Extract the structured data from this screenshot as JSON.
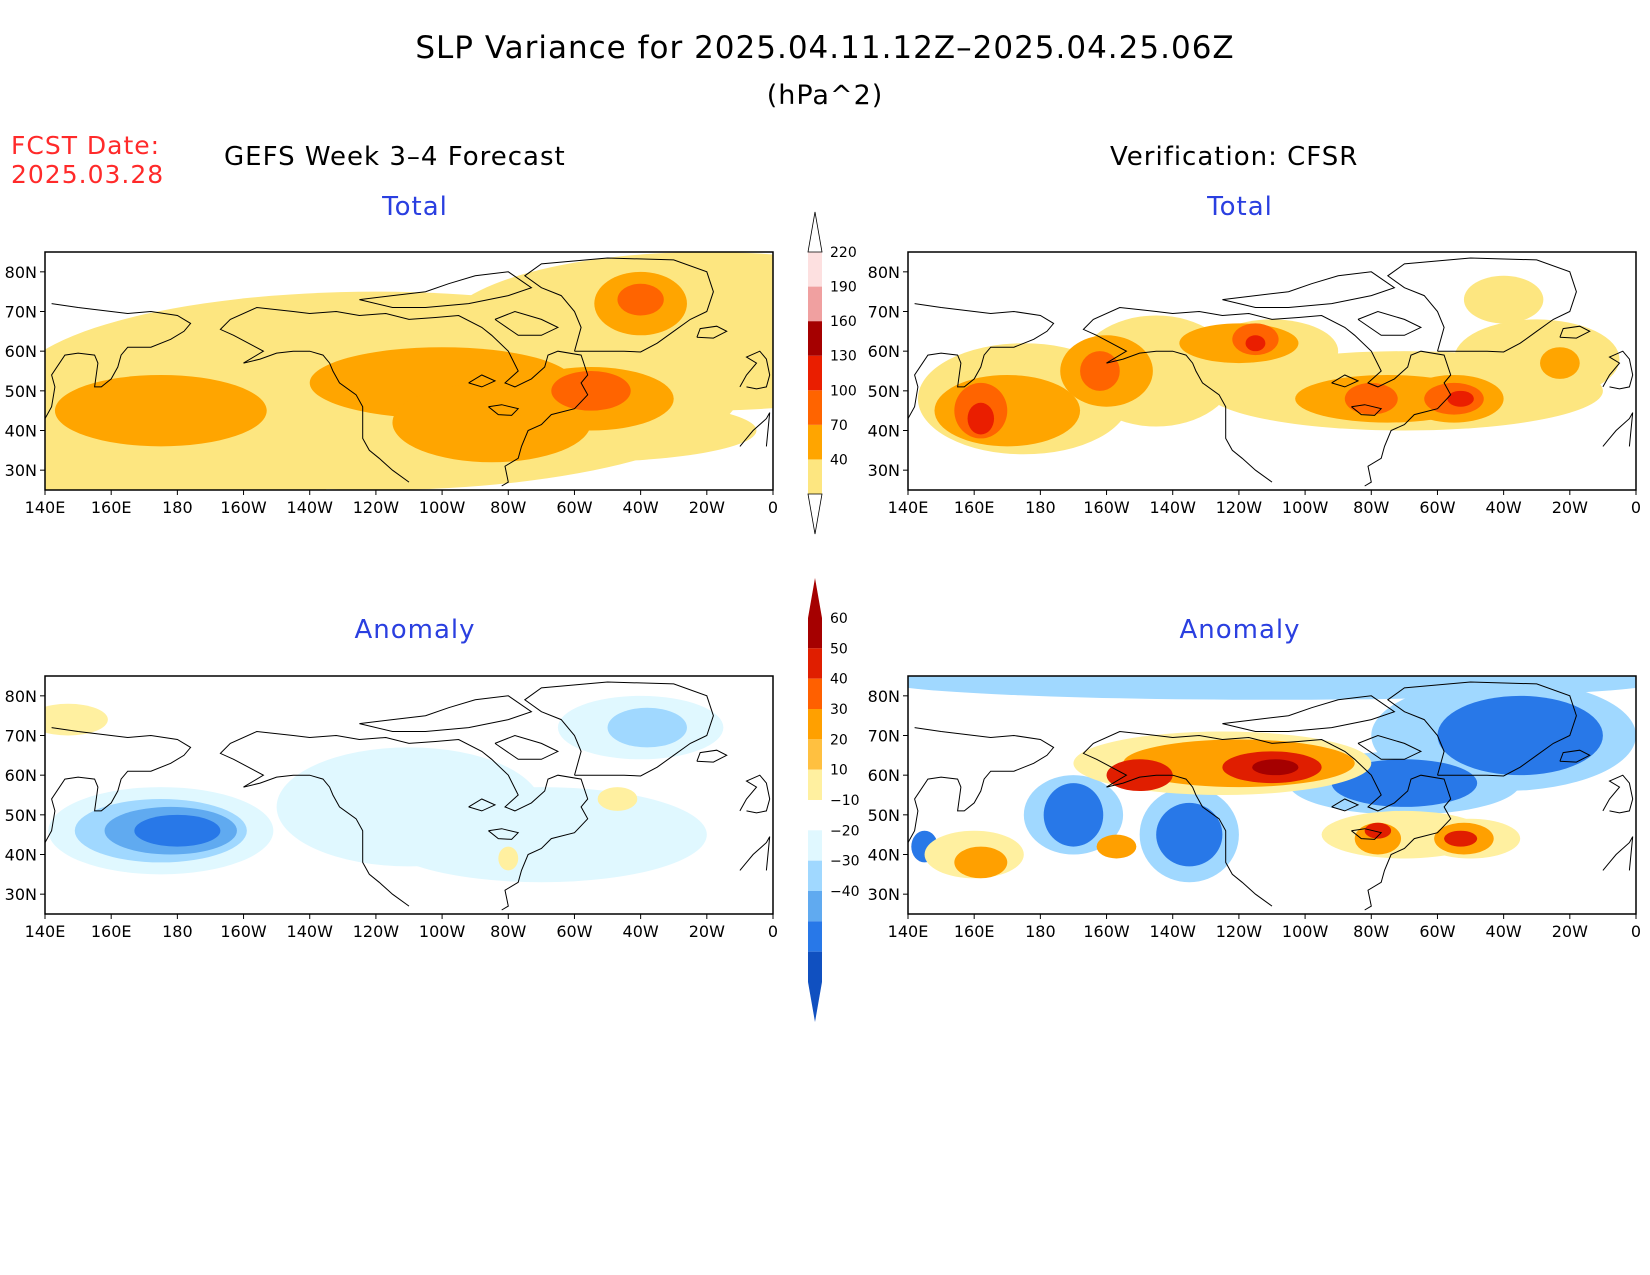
{
  "title": "SLP Variance for 2025.04.11.12Z–2025.04.25.06Z",
  "units": "(hPa^2)",
  "fcst_date": {
    "label": "FCST Date:",
    "value": "2025.03.28"
  },
  "column_titles": {
    "left": "GEFS Week 3–4 Forecast",
    "right": "Verification: CFSR"
  },
  "row_titles": {
    "top": "Total",
    "bottom": "Anomaly"
  },
  "lat_labels": [
    "80N",
    "70N",
    "60N",
    "50N",
    "40N",
    "30N"
  ],
  "lon_labels": [
    "140E",
    "160E",
    "180",
    "160W",
    "140W",
    "120W",
    "100W",
    "80W",
    "60W",
    "40W",
    "20W",
    "0"
  ],
  "colorbars": {
    "total": {
      "levels": [
        "40",
        "70",
        "100",
        "130",
        "160",
        "190",
        "220"
      ],
      "colors": [
        "#fde680",
        "#ffa500",
        "#ff6400",
        "#ea1e00",
        "#a50000",
        "#f0a0a0",
        "#fde0e0"
      ]
    },
    "anomaly": {
      "levels": [
        "60",
        "50",
        "40",
        "30",
        "20",
        "10",
        "−10",
        "−20",
        "−30",
        "−40"
      ],
      "pos_colors": [
        "#a50000",
        "#e01e00",
        "#ff6000",
        "#ffa000",
        "#ffc040",
        "#fff0a0"
      ],
      "neg_colors": [
        "#e0f8ff",
        "#a0d8ff",
        "#60aaf0",
        "#2878e8",
        "#1050c0"
      ]
    }
  },
  "panels": [
    {
      "id": "gefs-total",
      "shading": [
        {
          "color": "#fde680",
          "blobs": [
            [
              175,
              25,
              50,
              20
            ],
            [
              240,
              50,
              110,
              25
            ],
            [
              340,
              65,
              80,
              20
            ],
            [
              430,
              45,
              70,
              20
            ],
            [
              470,
              60,
              55,
              18
            ],
            [
              300,
              40,
              55,
              8
            ]
          ]
        },
        {
          "color": "#ffa500",
          "blobs": [
            [
              175,
              45,
              32,
              9
            ],
            [
              260,
              52,
              40,
              9
            ],
            [
              275,
              42,
              30,
              10
            ],
            [
              305,
              48,
              25,
              8
            ],
            [
              320,
              72,
              14,
              8
            ]
          ]
        },
        {
          "color": "#ff6400",
          "blobs": [
            [
              305,
              50,
              12,
              5
            ],
            [
              320,
              73,
              7,
              4
            ]
          ]
        }
      ]
    },
    {
      "id": "cfsr-total",
      "shading": [
        {
          "color": "#fde680",
          "blobs": [
            [
              175,
              48,
              32,
              14
            ],
            [
              215,
              55,
              24,
              14
            ],
            [
              250,
              60,
              20,
              8
            ],
            [
              290,
              50,
              60,
              10
            ],
            [
              330,
              58,
              25,
              10
            ],
            [
              320,
              73,
              12,
              6
            ]
          ]
        },
        {
          "color": "#ffa500",
          "blobs": [
            [
              170,
              45,
              22,
              9
            ],
            [
              200,
              55,
              14,
              9
            ],
            [
              240,
              62,
              18,
              5
            ],
            [
              285,
              48,
              28,
              6
            ],
            [
              305,
              48,
              15,
              6
            ],
            [
              337,
              57,
              6,
              4
            ]
          ]
        },
        {
          "color": "#ff6400",
          "blobs": [
            [
              162,
              45,
              8,
              7
            ],
            [
              198,
              55,
              6,
              5
            ],
            [
              245,
              63,
              7,
              4
            ],
            [
              280,
              48,
              8,
              4
            ],
            [
              305,
              48,
              9,
              4
            ]
          ]
        },
        {
          "color": "#ea1e00",
          "blobs": [
            [
              162,
              43,
              4,
              4
            ],
            [
              245,
              62,
              3,
              2
            ],
            [
              307,
              48,
              4,
              2
            ]
          ]
        }
      ]
    },
    {
      "id": "gefs-anomaly",
      "shading": [
        {
          "color": "#e0f8ff",
          "blobs": [
            [
              175,
              46,
              34,
              11
            ],
            [
              250,
              52,
              40,
              15
            ],
            [
              320,
              72,
              25,
              8
            ],
            [
              290,
              45,
              50,
              12
            ]
          ]
        },
        {
          "color": "#a0d8ff",
          "blobs": [
            [
              175,
              46,
              26,
              8
            ],
            [
              322,
              72,
              12,
              5
            ]
          ]
        },
        {
          "color": "#60aaf0",
          "blobs": [
            [
              178,
              46,
              20,
              6
            ]
          ]
        },
        {
          "color": "#2878e8",
          "blobs": [
            [
              180,
              46,
              13,
              4
            ]
          ]
        },
        {
          "color": "#fff0a0",
          "blobs": [
            [
              147,
              74,
              12,
              4
            ],
            [
              313,
              54,
              6,
              3
            ],
            [
              280,
              39,
              3,
              3
            ]
          ]
        }
      ]
    },
    {
      "id": "cfsr-anomaly",
      "shading": [
        {
          "color": "#a0d8ff",
          "blobs": [
            [
              250,
              84,
              120,
              5
            ],
            [
              320,
              70,
              40,
              14
            ],
            [
              290,
              58,
              35,
              8
            ],
            [
              190,
              50,
              15,
              10
            ],
            [
              225,
              45,
              15,
              12
            ]
          ]
        },
        {
          "color": "#2878e8",
          "blobs": [
            [
              325,
              70,
              25,
              10
            ],
            [
              290,
              58,
              22,
              6
            ],
            [
              190,
              50,
              9,
              8
            ],
            [
              225,
              45,
              10,
              8
            ],
            [
              145,
              42,
              4,
              4
            ]
          ]
        },
        {
          "color": "#fff0a0",
          "blobs": [
            [
              235,
              63,
              45,
              8
            ],
            [
              290,
              45,
              25,
              6
            ],
            [
              160,
              40,
              15,
              6
            ],
            [
              310,
              44,
              15,
              5
            ]
          ]
        },
        {
          "color": "#ffa000",
          "blobs": [
            [
              240,
              63,
              35,
              6
            ],
            [
              282,
              44,
              7,
              4
            ],
            [
              308,
              44,
              9,
              4
            ],
            [
              162,
              38,
              8,
              4
            ],
            [
              203,
              42,
              6,
              3
            ]
          ]
        },
        {
          "color": "#e01e00",
          "blobs": [
            [
              250,
              62,
              15,
              4
            ],
            [
              210,
              60,
              10,
              4
            ],
            [
              307,
              44,
              5,
              2
            ],
            [
              282,
              46,
              4,
              2
            ]
          ]
        },
        {
          "color": "#a50000",
          "blobs": [
            [
              251,
              62,
              7,
              2
            ]
          ]
        }
      ]
    }
  ]
}
